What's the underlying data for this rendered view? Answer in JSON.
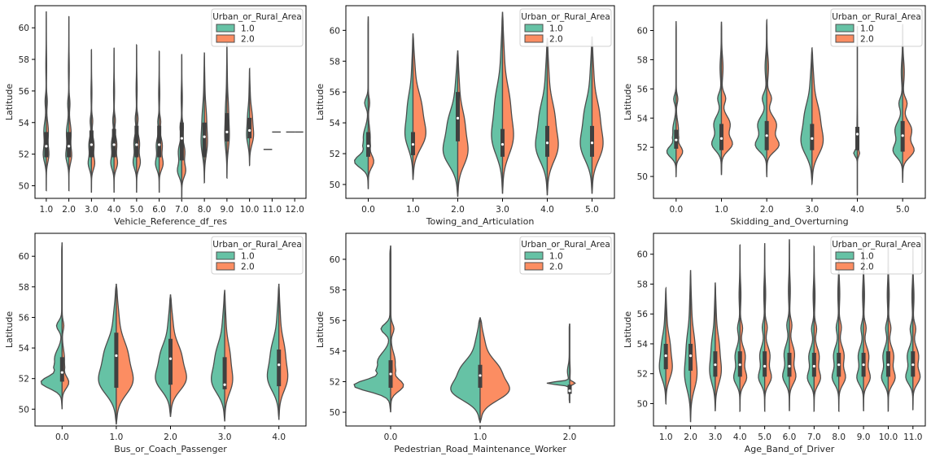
{
  "colors": {
    "urban": "#66c2a5",
    "rural": "#fc8d62",
    "outline": "#4d4d4d",
    "axis": "#000000"
  },
  "chart_data": [
    {
      "type": "violin",
      "xlabel": "Vehicle_Reference_df_res",
      "ylabel": "Latitude",
      "categories": [
        "1.0",
        "2.0",
        "3.0",
        "4.0",
        "5.0",
        "6.0",
        "7.0",
        "8.0",
        "9.0",
        "10.0",
        "11.0",
        "12.0"
      ],
      "ylim": [
        49.2,
        61.4
      ],
      "yticks": [
        50,
        52,
        54,
        56,
        58,
        60
      ],
      "legend": {
        "title": "Urban_or_Rural_Area",
        "entries": [
          "1.0",
          "2.0"
        ],
        "placement": "top-right"
      },
      "violins": [
        {
          "min": 49.7,
          "max": 61.0,
          "q1": 51.8,
          "median": 52.5,
          "q3": 53.4,
          "hw_left": 0.14,
          "hw_right": 0.12,
          "shape": "multi"
        },
        {
          "min": 49.7,
          "max": 60.7,
          "q1": 51.8,
          "median": 52.5,
          "q3": 53.4,
          "hw_left": 0.14,
          "hw_right": 0.13,
          "shape": "multi"
        },
        {
          "min": 49.6,
          "max": 58.6,
          "q1": 51.8,
          "median": 52.6,
          "q3": 53.5,
          "hw_left": 0.15,
          "hw_right": 0.15,
          "shape": "multi"
        },
        {
          "min": 49.6,
          "max": 58.7,
          "q1": 51.8,
          "median": 52.6,
          "q3": 53.6,
          "hw_left": 0.15,
          "hw_right": 0.16,
          "shape": "multi"
        },
        {
          "min": 49.6,
          "max": 58.9,
          "q1": 51.8,
          "median": 52.6,
          "q3": 53.8,
          "hw_left": 0.16,
          "hw_right": 0.17,
          "shape": "multi"
        },
        {
          "min": 49.6,
          "max": 58.5,
          "q1": 51.8,
          "median": 52.6,
          "q3": 53.8,
          "hw_left": 0.17,
          "hw_right": 0.18,
          "shape": "multi"
        },
        {
          "min": 49.1,
          "max": 58.3,
          "q1": 51.6,
          "median": 53.0,
          "q3": 54.0,
          "hw_left": 0.2,
          "hw_right": 0.18,
          "shape": "multi"
        },
        {
          "min": 50.2,
          "max": 58.4,
          "q1": 51.8,
          "median": 53.1,
          "q3": 54.0,
          "hw_left": 0.18,
          "hw_right": 0.17,
          "shape": "smooth"
        },
        {
          "min": 50.5,
          "max": 59.0,
          "q1": 52.8,
          "median": 53.4,
          "q3": 54.6,
          "hw_left": 0.12,
          "hw_right": 0.13,
          "shape": "smooth"
        },
        {
          "min": 51.3,
          "max": 57.4,
          "q1": 53.0,
          "median": 53.5,
          "q3": 54.3,
          "hw_left": 0.16,
          "hw_right": 0.22,
          "shape": "smooth"
        },
        {
          "single_left": 52.3,
          "single_right": 53.4
        },
        {
          "single_left": 53.4,
          "single_right": 53.4
        }
      ]
    },
    {
      "type": "violin",
      "xlabel": "Towing_and_Articulation",
      "ylabel": "Latitude",
      "categories": [
        "0.0",
        "1.0",
        "2.0",
        "3.0",
        "4.0",
        "5.0"
      ],
      "ylim": [
        49.1,
        61.6
      ],
      "yticks": [
        50,
        52,
        54,
        56,
        58,
        60
      ],
      "legend": {
        "title": "Urban_or_Rural_Area",
        "entries": [
          "1.0",
          "2.0"
        ],
        "placement": "top-right"
      },
      "violins": [
        {
          "min": 49.7,
          "max": 60.9,
          "q1": 51.8,
          "median": 52.5,
          "q3": 53.4,
          "hw_left": 0.3,
          "hw_right": 0.12,
          "shape": "spiky"
        },
        {
          "min": 50.3,
          "max": 59.8,
          "q1": 51.9,
          "median": 52.6,
          "q3": 53.4,
          "hw_left": 0.22,
          "hw_right": 0.35,
          "shape": "smooth"
        },
        {
          "min": 49.2,
          "max": 58.7,
          "q1": 52.8,
          "median": 54.3,
          "q3": 56.0,
          "hw_left": 0.4,
          "hw_right": 0.28,
          "shape": "smooth"
        },
        {
          "min": 49.4,
          "max": 61.2,
          "q1": 51.8,
          "median": 52.6,
          "q3": 53.6,
          "hw_left": 0.3,
          "hw_right": 0.3,
          "shape": "smooth"
        },
        {
          "min": 49.3,
          "max": 59.5,
          "q1": 51.8,
          "median": 52.7,
          "q3": 53.8,
          "hw_left": 0.32,
          "hw_right": 0.3,
          "shape": "smooth"
        },
        {
          "min": 49.4,
          "max": 59.6,
          "q1": 51.8,
          "median": 52.7,
          "q3": 53.8,
          "hw_left": 0.32,
          "hw_right": 0.3,
          "shape": "smooth"
        }
      ]
    },
    {
      "type": "violin",
      "xlabel": "Skidding_and_Overturning",
      "ylabel": "Latitude",
      "categories": [
        "0.0",
        "1.0",
        "2.0",
        "3.0",
        "4.0",
        "5.0"
      ],
      "ylim": [
        48.5,
        61.7
      ],
      "yticks": [
        50,
        52,
        54,
        56,
        58,
        60
      ],
      "legend": {
        "title": "Urban_or_Rural_Area",
        "entries": [
          "1.0",
          "2.0"
        ],
        "placement": "top-right"
      },
      "violins": [
        {
          "min": 50.0,
          "max": 60.6,
          "q1": 51.9,
          "median": 52.5,
          "q3": 53.2,
          "hw_left": 0.2,
          "hw_right": 0.14,
          "shape": "spiky"
        },
        {
          "min": 50.1,
          "max": 60.6,
          "q1": 51.8,
          "median": 52.6,
          "q3": 53.6,
          "hw_left": 0.22,
          "hw_right": 0.25,
          "shape": "multi"
        },
        {
          "min": 50.0,
          "max": 60.7,
          "q1": 51.8,
          "median": 52.8,
          "q3": 53.8,
          "hw_left": 0.26,
          "hw_right": 0.28,
          "shape": "multi"
        },
        {
          "min": 49.5,
          "max": 58.8,
          "q1": 51.8,
          "median": 52.6,
          "q3": 53.6,
          "hw_left": 0.3,
          "hw_right": 0.3,
          "shape": "smooth"
        },
        {
          "min": 48.7,
          "max": 60.3,
          "q1": 51.8,
          "median": 52.9,
          "q3": 53.4,
          "hw_left": 0.08,
          "hw_right": 0.05,
          "shape": "flat"
        },
        {
          "min": 49.6,
          "max": 60.4,
          "q1": 51.7,
          "median": 52.8,
          "q3": 53.8,
          "hw_left": 0.22,
          "hw_right": 0.26,
          "shape": "multi"
        }
      ]
    },
    {
      "type": "violin",
      "xlabel": "Bus_or_Coach_Passenger",
      "ylabel": "Latitude",
      "categories": [
        "0.0",
        "1.0",
        "2.0",
        "3.0",
        "4.0"
      ],
      "ylim": [
        48.9,
        61.5
      ],
      "yticks": [
        50,
        52,
        54,
        56,
        58,
        60
      ],
      "legend": {
        "title": "Urban_or_Rural_Area",
        "entries": [
          "1.0",
          "2.0"
        ],
        "placement": "top-right"
      },
      "violins": [
        {
          "min": 50.0,
          "max": 60.9,
          "q1": 51.8,
          "median": 52.4,
          "q3": 53.4,
          "hw_left": 0.38,
          "hw_right": 0.12,
          "shape": "spiky"
        },
        {
          "min": 49.0,
          "max": 58.2,
          "q1": 51.4,
          "median": 53.5,
          "q3": 55.0,
          "hw_left": 0.4,
          "hw_right": 0.38,
          "shape": "smooth"
        },
        {
          "min": 49.5,
          "max": 57.5,
          "q1": 51.6,
          "median": 53.3,
          "q3": 54.6,
          "hw_left": 0.34,
          "hw_right": 0.36,
          "shape": "smooth"
        },
        {
          "min": 49.2,
          "max": 57.8,
          "q1": 51.3,
          "median": 51.6,
          "q3": 53.4,
          "hw_left": 0.3,
          "hw_right": 0.18,
          "shape": "smooth"
        },
        {
          "min": 49.3,
          "max": 58.2,
          "q1": 51.5,
          "median": 52.9,
          "q3": 53.9,
          "hw_left": 0.26,
          "hw_right": 0.2,
          "shape": "smooth"
        }
      ]
    },
    {
      "type": "violin",
      "xlabel": "Pedestrian_Road_Maintenance_Worker",
      "ylabel": "Latitude",
      "categories": [
        "0.0",
        "1.0",
        "2.0"
      ],
      "ylim": [
        49.1,
        61.7
      ],
      "yticks": [
        50,
        52,
        54,
        56,
        58,
        60
      ],
      "legend": {
        "title": "Urban_or_Rural_Area",
        "entries": [
          "1.0",
          "2.0"
        ],
        "placement": "top-right"
      },
      "violins": [
        {
          "min": 50.0,
          "max": 60.9,
          "q1": 51.6,
          "median": 52.5,
          "q3": 53.4,
          "hw_left": 0.4,
          "hw_right": 0.14,
          "shape": "spiky"
        },
        {
          "min": 49.3,
          "max": 56.2,
          "q1": 51.6,
          "median": 52.4,
          "q3": 53.1,
          "hw_left": 0.4,
          "hw_right": 0.4,
          "shape": "smooth"
        },
        {
          "min": 50.6,
          "max": 55.8,
          "q1": 51.2,
          "median": 51.4,
          "q3": 51.8,
          "hw_left": 0.25,
          "hw_right": 0.06,
          "shape": "flat"
        }
      ]
    },
    {
      "type": "violin",
      "xlabel": "Age_Band_of_Driver",
      "ylabel": "Latitude",
      "categories": [
        "1.0",
        "2.0",
        "3.0",
        "4.0",
        "5.0",
        "6.0",
        "7.0",
        "8.0",
        "9.0",
        "10.0",
        "11.0"
      ],
      "ylim": [
        48.5,
        61.4
      ],
      "yticks": [
        50,
        52,
        54,
        56,
        58,
        60
      ],
      "legend": {
        "title": "Urban_or_Rural_Area",
        "entries": [
          "1.0",
          "2.0"
        ],
        "placement": "top-right"
      },
      "violins": [
        {
          "min": 50.0,
          "max": 57.7,
          "q1": 52.3,
          "median": 53.2,
          "q3": 54.0,
          "hw_left": 0.32,
          "hw_right": 0.32,
          "shape": "smooth"
        },
        {
          "min": 48.8,
          "max": 58.9,
          "q1": 52.2,
          "median": 53.2,
          "q3": 54.0,
          "hw_left": 0.3,
          "hw_right": 0.32,
          "shape": "smooth"
        },
        {
          "min": 49.5,
          "max": 58.1,
          "q1": 51.8,
          "median": 52.6,
          "q3": 53.5,
          "hw_left": 0.28,
          "hw_right": 0.3,
          "shape": "smooth"
        },
        {
          "min": 49.5,
          "max": 60.6,
          "q1": 51.8,
          "median": 52.6,
          "q3": 53.5,
          "hw_left": 0.26,
          "hw_right": 0.28,
          "shape": "multi"
        },
        {
          "min": 49.5,
          "max": 60.7,
          "q1": 51.8,
          "median": 52.5,
          "q3": 53.5,
          "hw_left": 0.26,
          "hw_right": 0.28,
          "shape": "multi"
        },
        {
          "min": 49.5,
          "max": 61.0,
          "q1": 51.8,
          "median": 52.5,
          "q3": 53.4,
          "hw_left": 0.28,
          "hw_right": 0.27,
          "shape": "multi"
        },
        {
          "min": 49.5,
          "max": 60.5,
          "q1": 51.8,
          "median": 52.5,
          "q3": 53.4,
          "hw_left": 0.28,
          "hw_right": 0.27,
          "shape": "multi"
        },
        {
          "min": 49.5,
          "max": 60.7,
          "q1": 51.8,
          "median": 52.6,
          "q3": 53.4,
          "hw_left": 0.28,
          "hw_right": 0.28,
          "shape": "multi"
        },
        {
          "min": 49.5,
          "max": 60.6,
          "q1": 51.8,
          "median": 52.6,
          "q3": 53.4,
          "hw_left": 0.28,
          "hw_right": 0.28,
          "shape": "multi"
        },
        {
          "min": 49.5,
          "max": 60.6,
          "q1": 51.8,
          "median": 52.6,
          "q3": 53.5,
          "hw_left": 0.28,
          "hw_right": 0.29,
          "shape": "multi"
        },
        {
          "min": 49.6,
          "max": 60.4,
          "q1": 51.8,
          "median": 52.6,
          "q3": 53.5,
          "hw_left": 0.3,
          "hw_right": 0.3,
          "shape": "multi"
        }
      ]
    }
  ]
}
